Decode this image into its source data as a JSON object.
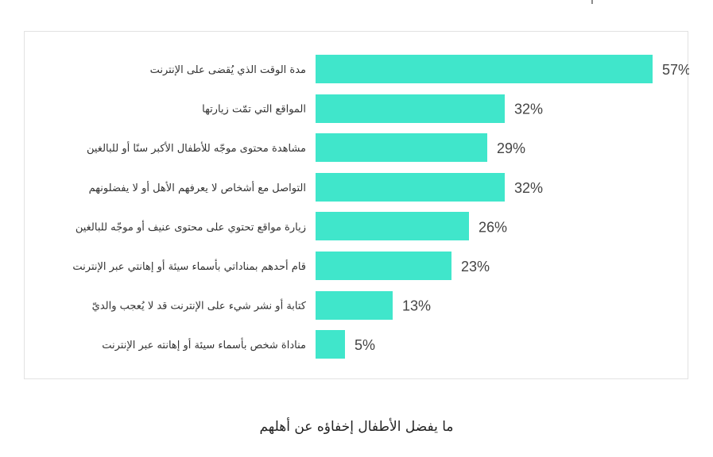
{
  "page": {
    "caption": "ما يفضل الأطفال إخفاؤه عن أهلهم",
    "top_fragment": "ا"
  },
  "colors": {
    "bar": "#40e6cb",
    "label": "#333333",
    "value": "#444444"
  },
  "chart_data": {
    "type": "bar",
    "orientation": "horizontal",
    "categories": [
      "مدة الوقت الذي يُقضى على الإنترنت",
      "المواقع التي تمّت زيارتها",
      "مشاهدة محتوى موجّه للأطفال الأكبر سنًا أو للبالغين",
      "التواصل مع أشخاص لا يعرفهم الأهل أو لا يفضلونهم",
      "زيارة مواقع تحتوي على محتوى عنيف أو موجّه للبالغين",
      "قام أحدهم بمناداتي بأسماء سيئة أو إهانتي عبر الإنترنت",
      "كتابة أو نشر شيء على الإنترنت قد لا يُعجب والديّ",
      "مناداة شخص بأسماء سيئة أو إهانته عبر الإنترنت"
    ],
    "values": [
      57,
      32,
      29,
      32,
      26,
      23,
      13,
      5
    ],
    "value_labels": [
      "57%",
      "32%",
      "29%",
      "32%",
      "26%",
      "23%",
      "13%",
      "5%"
    ],
    "unit": "%",
    "xlim": [
      0,
      57
    ],
    "grid": false,
    "legend": "none"
  }
}
